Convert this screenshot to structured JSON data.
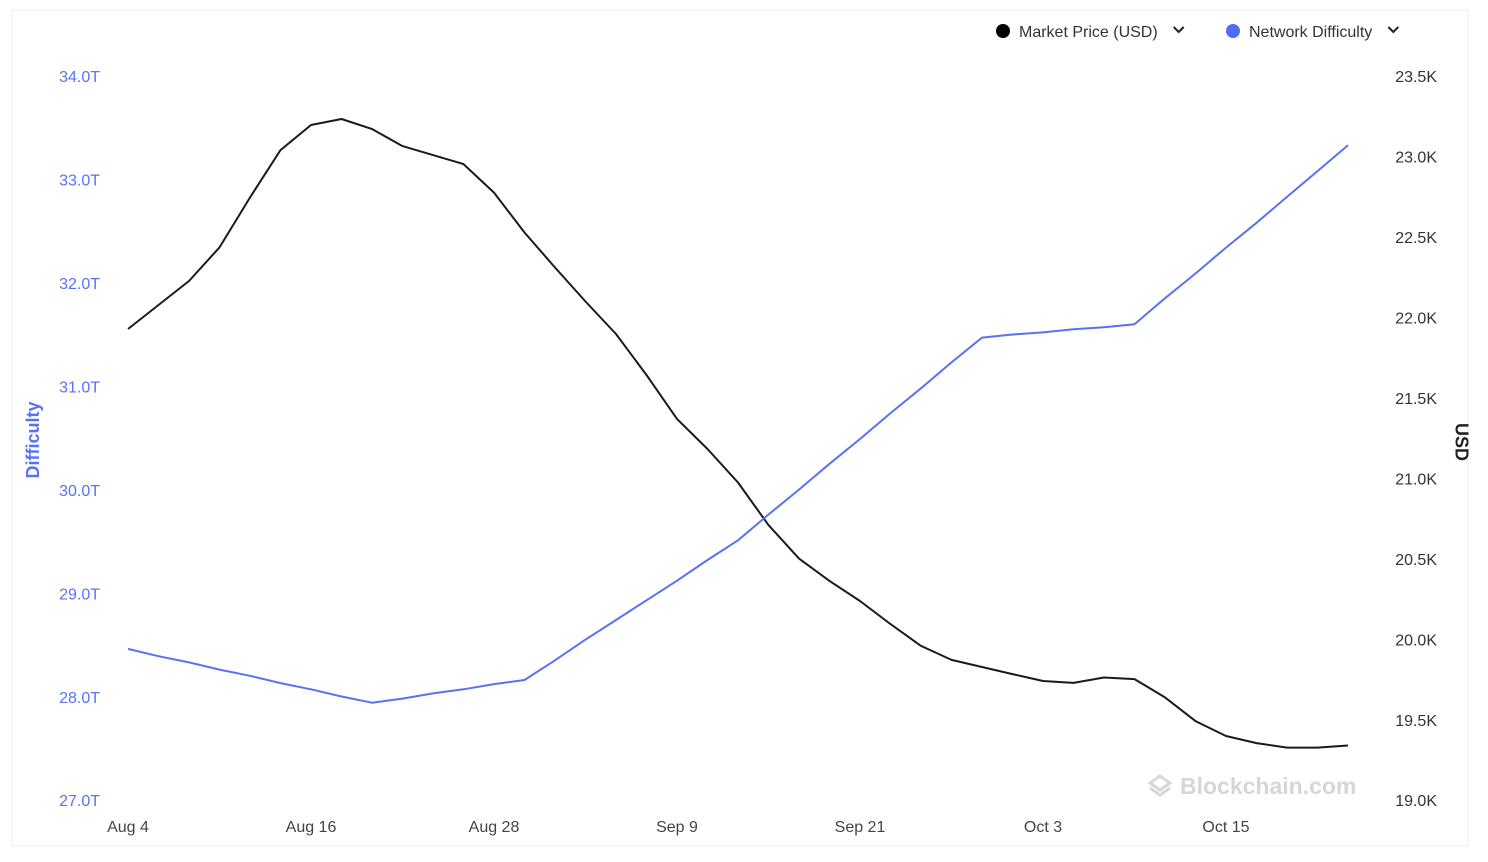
{
  "chart_data": {
    "type": "line",
    "legend": "top-right",
    "watermark": "Blockchain.com",
    "ylabel": "Difficulty",
    "y2label": "USD",
    "x": [
      "Aug 4",
      "Aug 6",
      "Aug 8",
      "Aug 10",
      "Aug 12",
      "Aug 14",
      "Aug 16",
      "Aug 18",
      "Aug 20",
      "Aug 22",
      "Aug 24",
      "Aug 26",
      "Aug 28",
      "Aug 30",
      "Sep 1",
      "Sep 3",
      "Sep 5",
      "Sep 7",
      "Sep 9",
      "Sep 11",
      "Sep 13",
      "Sep 15",
      "Sep 17",
      "Sep 19",
      "Sep 21",
      "Sep 23",
      "Sep 25",
      "Sep 27",
      "Sep 29",
      "Oct 1",
      "Oct 3",
      "Oct 5",
      "Oct 7",
      "Oct 9",
      "Oct 11",
      "Oct 13",
      "Oct 15",
      "Oct 17",
      "Oct 19",
      "Oct 21",
      "Oct 23"
    ],
    "xticks": [
      "Aug 4",
      "Aug 16",
      "Aug 28",
      "Sep 9",
      "Sep 21",
      "Oct 3",
      "Oct 15"
    ],
    "ylim": [
      27,
      34
    ],
    "yticks": [
      {
        "value": 27,
        "label": "27.0T"
      },
      {
        "value": 28,
        "label": "28.0T"
      },
      {
        "value": 29,
        "label": "29.0T"
      },
      {
        "value": 30,
        "label": "30.0T"
      },
      {
        "value": 31,
        "label": "31.0T"
      },
      {
        "value": 32,
        "label": "32.0T"
      },
      {
        "value": 33,
        "label": "33.0T"
      },
      {
        "value": 34,
        "label": "34.0T"
      }
    ],
    "y2lim": [
      19000,
      23500
    ],
    "y2ticks": [
      {
        "value": 19000,
        "label": "19.0K"
      },
      {
        "value": 19500,
        "label": "19.5K"
      },
      {
        "value": 20000,
        "label": "20.0K"
      },
      {
        "value": 20500,
        "label": "20.5K"
      },
      {
        "value": 21000,
        "label": "21.0K"
      },
      {
        "value": 21500,
        "label": "21.5K"
      },
      {
        "value": 22000,
        "label": "22.0K"
      },
      {
        "value": 22500,
        "label": "22.5K"
      },
      {
        "value": 23000,
        "label": "23.0K"
      },
      {
        "value": 23500,
        "label": "23.5K"
      }
    ],
    "series": [
      {
        "name": "Market Price (USD)",
        "color": "#1a1a1a",
        "axis": "y2",
        "values": [
          21940,
          22089,
          22238,
          22447,
          22757,
          23052,
          23208,
          23245,
          23183,
          23077,
          23021,
          22965,
          22788,
          22540,
          22322,
          22111,
          21909,
          21654,
          21381,
          21194,
          20986,
          20721,
          20513,
          20374,
          20249,
          20106,
          19970,
          19883,
          19839,
          19795,
          19752,
          19740,
          19774,
          19764,
          19650,
          19503,
          19410,
          19366,
          19338,
          19338,
          19351
        ]
      },
      {
        "name": "Network Difficulty",
        "color": "#5872f5",
        "values": [
          28.48,
          28.41,
          28.35,
          28.28,
          28.22,
          28.15,
          28.09,
          28.02,
          27.96,
          28.0,
          28.05,
          28.09,
          28.14,
          28.18,
          28.37,
          28.57,
          28.76,
          28.95,
          29.14,
          29.34,
          29.53,
          29.78,
          30.02,
          30.27,
          30.51,
          30.76,
          31.0,
          31.25,
          31.49,
          31.52,
          31.54,
          31.57,
          31.59,
          31.62,
          31.87,
          32.11,
          32.36,
          32.6,
          32.85,
          33.1,
          33.35
        ]
      }
    ]
  }
}
